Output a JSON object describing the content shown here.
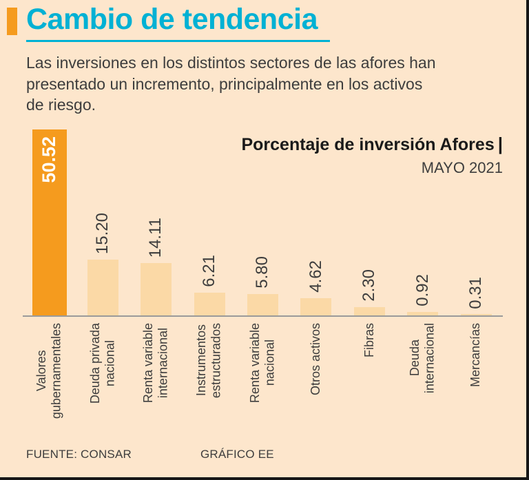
{
  "header": {
    "title": "Cambio de tendencia",
    "description": "Las inversiones en los distintos sectores de las afores han\npresentado un incremento, principalmente en los activos\nde riesgo."
  },
  "chart_header": {
    "title": "Porcentaje de inversión Afores",
    "divider": "|",
    "period": "MAYO 2021"
  },
  "footer": {
    "source": "FUENTE: CONSAR",
    "credit": "GRÁFICO EE"
  },
  "colors": {
    "background": "#fde6cc",
    "accent_orange": "#f59b1e",
    "bar_fill": "#fbd9a6",
    "heading_cyan": "#00b1d4",
    "text_dark": "#3d3d3d",
    "text_black": "#1a1a1a",
    "axis_gray": "#9a9a9a",
    "border_black": "#161616",
    "value_white": "#ffffff"
  },
  "chart_data": {
    "type": "bar",
    "title": "Porcentaje de inversión Afores",
    "subtitle": "MAYO 2021",
    "categories": [
      "Valores\ngubernamentales",
      "Deuda privada\nnacional",
      "Renta variable\ninternacional",
      "Instrumentos\nestructurados",
      "Renta variable\nnacional",
      "Otros activos",
      "Fibras",
      "Deuda\ninternacional",
      "Mercancías"
    ],
    "values": [
      50.52,
      15.2,
      14.11,
      6.21,
      5.8,
      4.62,
      2.3,
      0.92,
      0.31
    ],
    "value_labels": [
      "50.52",
      "15.20",
      "14.11",
      "6.21",
      "5.80",
      "4.62",
      "2.30",
      "0.92",
      "0.31"
    ],
    "highlight_index": 0,
    "ylim": [
      0,
      50.52
    ],
    "unit": "percent",
    "grid": false,
    "legend": "none"
  }
}
